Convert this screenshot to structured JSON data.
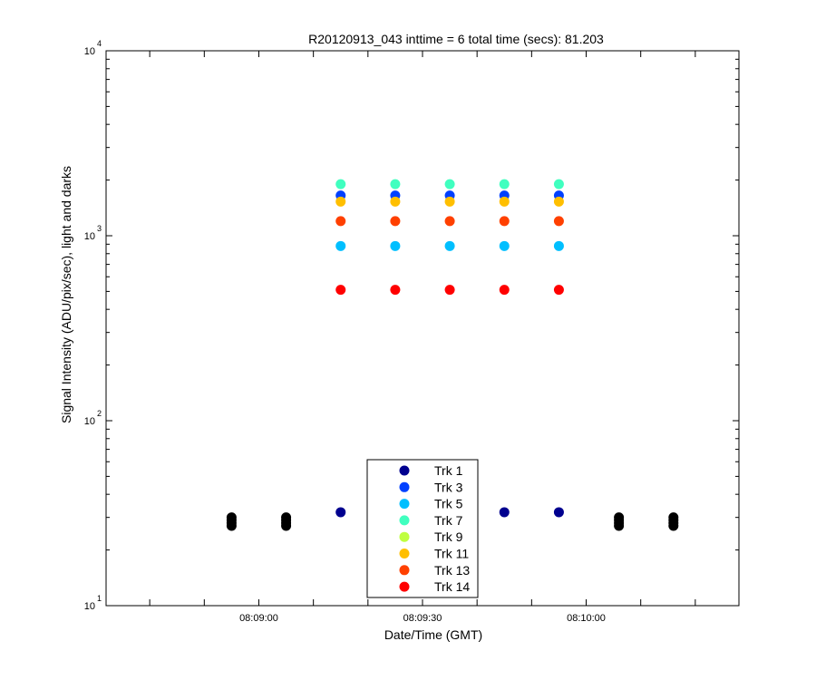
{
  "chart_data": {
    "type": "scatter",
    "title": "R20120913_043 inttime = 6 total time (secs): 81.203",
    "xlabel": "Date/Time (GMT)",
    "ylabel": "Signal Intensity (ADU/pix/sec), light and darks",
    "yscale": "log",
    "xlim": [
      "08:08:32",
      "08:10:28"
    ],
    "ylim": [
      10,
      10000
    ],
    "x_ticks": [
      "08:09:00",
      "08:09:30",
      "08:10:00"
    ],
    "y_ticks": [
      {
        "base": "10",
        "exp": "1"
      },
      {
        "base": "10",
        "exp": "2"
      },
      {
        "base": "10",
        "exp": "3"
      },
      {
        "base": "10",
        "exp": "4"
      }
    ],
    "grid": false,
    "legend_position": "bottom-center",
    "series": [
      {
        "name": "Trk 1",
        "color": "#00008f",
        "x": [
          "08:09:15",
          "08:09:25",
          "08:09:35",
          "08:09:45",
          "08:09:55"
        ],
        "values": [
          32,
          32,
          32,
          32,
          32
        ]
      },
      {
        "name": "Trk 3",
        "color": "#0040ff",
        "x": [
          "08:09:15",
          "08:09:25",
          "08:09:35",
          "08:09:45",
          "08:09:55"
        ],
        "values": [
          1650,
          1650,
          1650,
          1650,
          1650
        ]
      },
      {
        "name": "Trk 5",
        "color": "#00bfff",
        "x": [
          "08:09:15",
          "08:09:25",
          "08:09:35",
          "08:09:45",
          "08:09:55"
        ],
        "values": [
          880,
          880,
          880,
          880,
          880
        ]
      },
      {
        "name": "Trk 7",
        "color": "#40ffbf",
        "x": [
          "08:09:15",
          "08:09:25",
          "08:09:35",
          "08:09:45",
          "08:09:55"
        ],
        "values": [
          1900,
          1900,
          1900,
          1900,
          1900
        ]
      },
      {
        "name": "Trk 9",
        "color": "#bfff40",
        "x": [],
        "values": []
      },
      {
        "name": "Trk 11",
        "color": "#ffbf00",
        "x": [
          "08:09:15",
          "08:09:25",
          "08:09:35",
          "08:09:45",
          "08:09:55"
        ],
        "values": [
          1530,
          1530,
          1530,
          1530,
          1530
        ]
      },
      {
        "name": "Trk 13",
        "color": "#ff4000",
        "x": [
          "08:09:15",
          "08:09:25",
          "08:09:35",
          "08:09:45",
          "08:09:55"
        ],
        "values": [
          1200,
          1200,
          1200,
          1200,
          1200
        ]
      },
      {
        "name": "Trk 14",
        "color": "#ff0000",
        "x": [
          "08:09:15",
          "08:09:25",
          "08:09:35",
          "08:09:45",
          "08:09:55"
        ],
        "values": [
          510,
          510,
          510,
          510,
          510
        ]
      }
    ],
    "darks": {
      "color": "#000000",
      "x": [
        "08:08:55",
        "08:09:05",
        "08:10:06",
        "08:10:16"
      ],
      "values": [
        27,
        28,
        29,
        30
      ]
    }
  }
}
